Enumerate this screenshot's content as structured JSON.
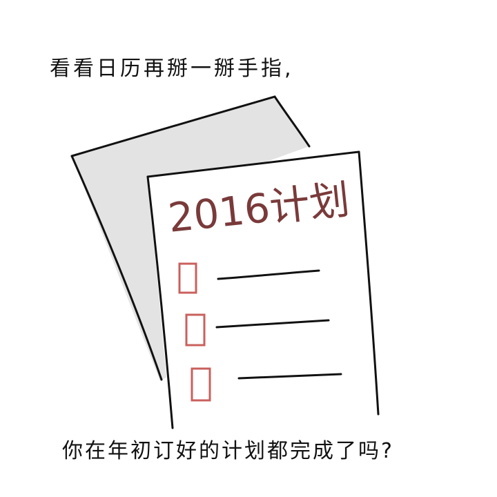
{
  "captions": {
    "top": "看看日历再掰一掰手指,",
    "bottom": "你在年初订好的计划都完成了吗?"
  },
  "paper": {
    "title": "2016计划",
    "checklist_item_count": 3
  },
  "colors": {
    "ink": "#111111",
    "title_ink": "#7a3a3a",
    "checkbox_ink": "#c9605c",
    "shadow_gray": "#d6d6d6",
    "paper_white": "#ffffff"
  }
}
